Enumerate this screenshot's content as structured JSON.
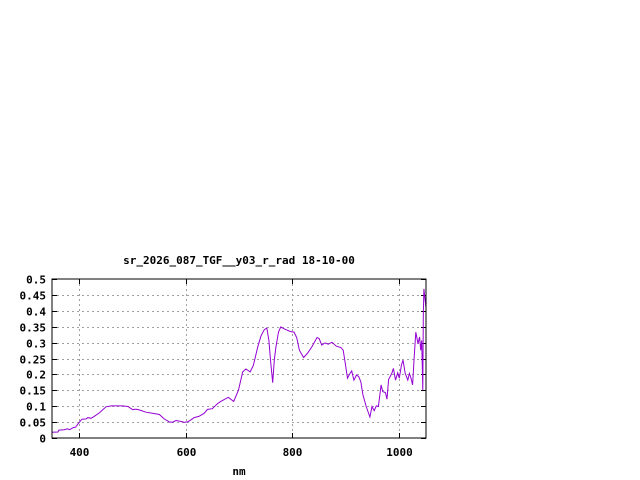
{
  "chart_data": {
    "type": "line",
    "title": "sr_2026_087_TGF__y03_r_rad 18-10-00",
    "xlabel": "nm",
    "ylabel": "",
    "xlim": [
      350,
      1050
    ],
    "ylim": [
      0,
      0.5
    ],
    "xticks": [
      400,
      600,
      800,
      1000
    ],
    "xtick_labels": [
      "400",
      "600",
      "800",
      "1000"
    ],
    "yticks": [
      0,
      0.05,
      0.1,
      0.15,
      0.2,
      0.25,
      0.3,
      0.35,
      0.4,
      0.45,
      0.5
    ],
    "ytick_labels": [
      "0",
      "0.05",
      "0.1",
      "0.15",
      "0.2",
      "0.25",
      "0.3",
      "0.35",
      "0.4",
      "0.45",
      "0.5"
    ],
    "grid": true,
    "line_color": "#9400d3",
    "series": [
      {
        "x": [
          350,
          361,
          363,
          373,
          379,
          383,
          390,
          394,
          400,
          406,
          414,
          417,
          423,
          429,
          439,
          451,
          461,
          482,
          492,
          501,
          507,
          514,
          526,
          538,
          551,
          560,
          570,
          576,
          582,
          592,
          598,
          604,
          610,
          616,
          625,
          635,
          641,
          650,
          659,
          665,
          680,
          690,
          699,
          707,
          713,
          721,
          727,
          735,
          741,
          747,
          752,
          756,
          759,
          763,
          766,
          769,
          774,
          778,
          786,
          796,
          803,
          808,
          813,
          821,
          828,
          836,
          846,
          850,
          855,
          861,
          867,
          874,
          882,
          891,
          895,
          899,
          903,
          907,
          911,
          915,
          920,
          924,
          928,
          932,
          938,
          945,
          949,
          953,
          957,
          961,
          966,
          969,
          974,
          977,
          980,
          986,
          989,
          993,
          997,
          1000,
          1004,
          1007,
          1011,
          1016,
          1019,
          1022,
          1025,
          1028,
          1031,
          1035,
          1038,
          1040,
          1042,
          1044,
          1045,
          1046,
          1048,
          1050
        ],
        "y": [
          0.018,
          0.019,
          0.025,
          0.026,
          0.029,
          0.026,
          0.033,
          0.034,
          0.047,
          0.059,
          0.06,
          0.064,
          0.062,
          0.068,
          0.08,
          0.098,
          0.101,
          0.101,
          0.099,
          0.089,
          0.091,
          0.088,
          0.081,
          0.078,
          0.074,
          0.06,
          0.05,
          0.05,
          0.055,
          0.052,
          0.049,
          0.051,
          0.057,
          0.064,
          0.068,
          0.078,
          0.09,
          0.092,
          0.107,
          0.114,
          0.128,
          0.115,
          0.151,
          0.208,
          0.217,
          0.208,
          0.229,
          0.286,
          0.32,
          0.34,
          0.346,
          0.307,
          0.245,
          0.174,
          0.245,
          0.286,
          0.333,
          0.349,
          0.342,
          0.335,
          0.333,
          0.316,
          0.276,
          0.253,
          0.266,
          0.286,
          0.316,
          0.313,
          0.292,
          0.299,
          0.295,
          0.301,
          0.289,
          0.284,
          0.276,
          0.234,
          0.188,
          0.201,
          0.211,
          0.182,
          0.198,
          0.193,
          0.177,
          0.135,
          0.099,
          0.066,
          0.099,
          0.086,
          0.101,
          0.099,
          0.167,
          0.146,
          0.143,
          0.122,
          0.184,
          0.203,
          0.219,
          0.182,
          0.205,
          0.188,
          0.229,
          0.245,
          0.203,
          0.182,
          0.203,
          0.188,
          0.167,
          0.255,
          0.333,
          0.297,
          0.318,
          0.276,
          0.307,
          0.151,
          0.385,
          0.469,
          0.44,
          0.41
        ]
      }
    ]
  }
}
